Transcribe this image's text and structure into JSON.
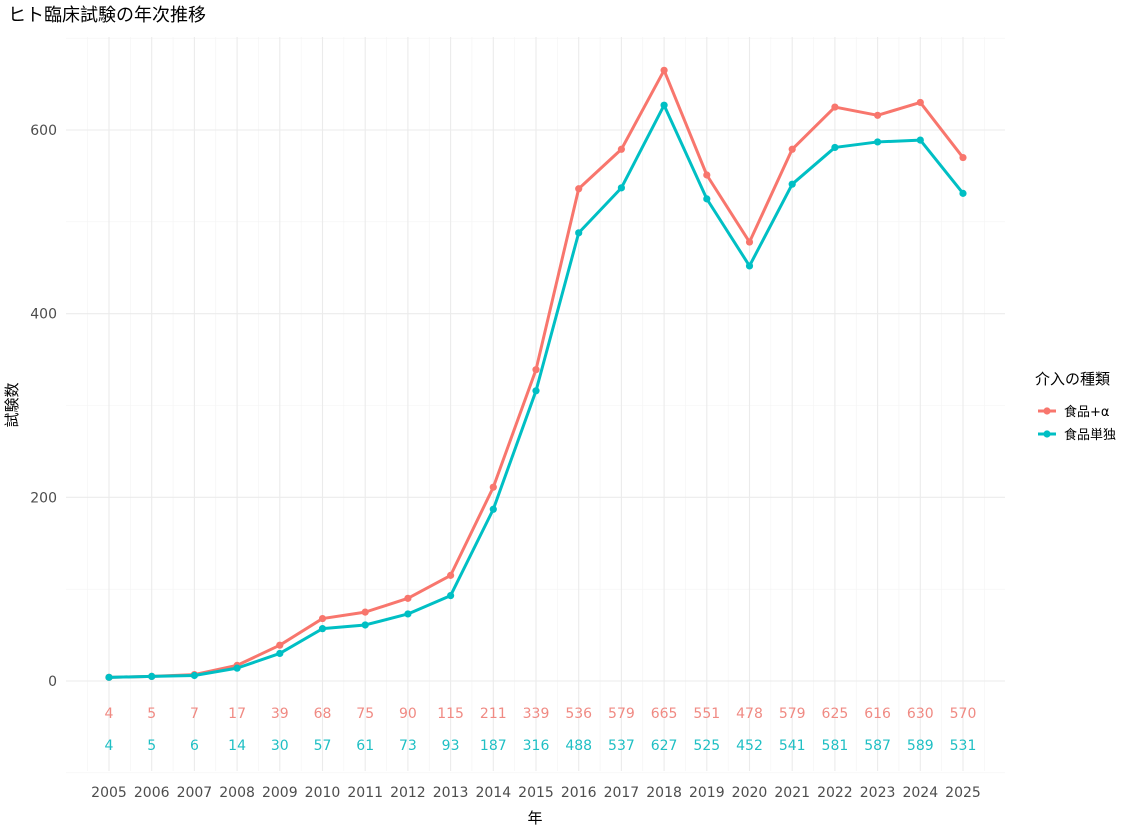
{
  "chart_data": {
    "type": "line",
    "title": "ヒト臨床試験の年次推移",
    "xlabel": "年",
    "ylabel": "試験数",
    "x": [
      2005,
      2006,
      2007,
      2008,
      2009,
      2010,
      2011,
      2012,
      2013,
      2014,
      2015,
      2016,
      2017,
      2018,
      2019,
      2020,
      2021,
      2022,
      2023,
      2024,
      2025
    ],
    "yticks": [
      0,
      200,
      400,
      600
    ],
    "ylim": [
      -100,
      700
    ],
    "grid": true,
    "legend": {
      "title": "介入の種類",
      "placement": "right"
    },
    "series": [
      {
        "name": "食品+α",
        "color": "#F8766D",
        "label_color": "#F08A83",
        "values": [
          4,
          5,
          7,
          17,
          39,
          68,
          75,
          90,
          115,
          211,
          339,
          536,
          579,
          665,
          551,
          478,
          579,
          625,
          616,
          630,
          570
        ]
      },
      {
        "name": "食品単独",
        "color": "#00BFC4",
        "label_color": "#1FBFC4",
        "values": [
          4,
          5,
          6,
          14,
          30,
          57,
          61,
          73,
          93,
          187,
          316,
          488,
          537,
          627,
          525,
          452,
          541,
          581,
          587,
          589,
          531
        ]
      }
    ]
  }
}
